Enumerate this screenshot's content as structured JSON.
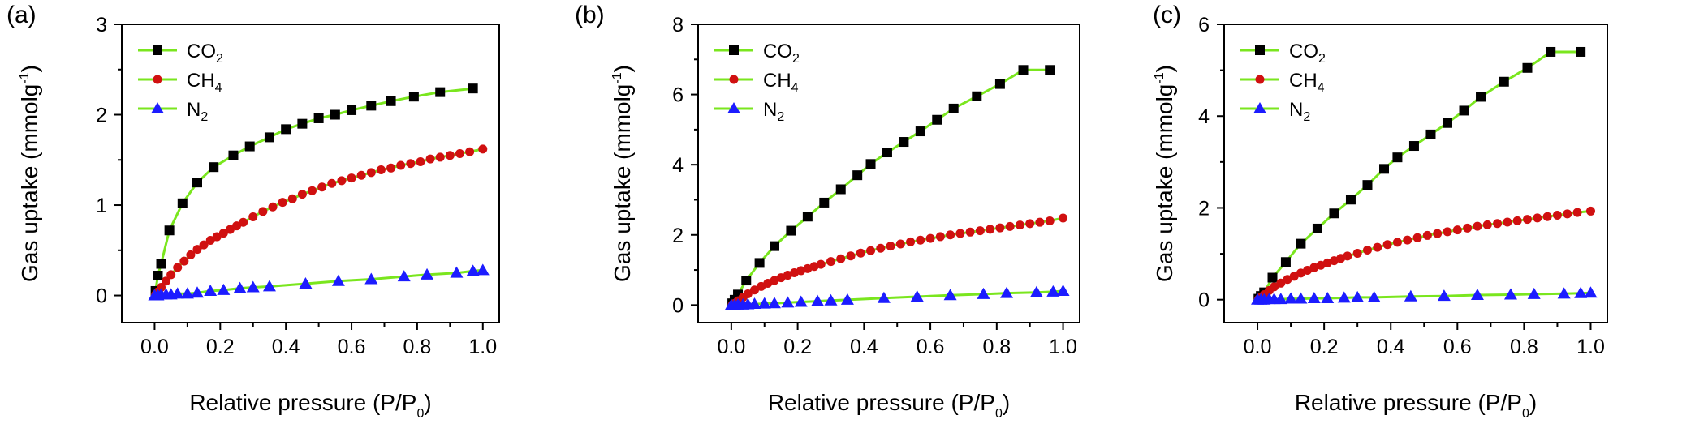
{
  "colors": {
    "co2": "#000000",
    "ch4": "#d01010",
    "n2": "#1c1cff",
    "line": "#7ae61e"
  },
  "legend_labels": {
    "co2_main": "CO",
    "co2_sub": "2",
    "ch4_main": "CH",
    "ch4_sub": "4",
    "n2_main": "N",
    "n2_sub": "2"
  },
  "axis_text": {
    "xlabel_main": "Relative pressure (P/P",
    "xlabel_sub": "0",
    "xlabel_close": ")",
    "ylabel_main": "Gas uptake (mmolg",
    "ylabel_sup": "-1",
    "ylabel_close": ")"
  },
  "chart_data": [
    {
      "type": "line",
      "panel": "(a)",
      "xlim": [
        -0.1,
        1.05
      ],
      "ylim": [
        -0.3,
        3
      ],
      "xticks": [
        "0.0",
        "0.2",
        "0.4",
        "0.6",
        "0.8",
        "1.0"
      ],
      "yticks": [
        "0",
        "1",
        "2",
        "3"
      ],
      "legend": "top-left",
      "series": [
        {
          "name": "CO2",
          "marker": "square",
          "x": [
            0.003,
            0.01,
            0.02,
            0.045,
            0.085,
            0.13,
            0.18,
            0.24,
            0.29,
            0.35,
            0.4,
            0.45,
            0.5,
            0.55,
            0.6,
            0.66,
            0.72,
            0.79,
            0.87,
            0.97
          ],
          "y": [
            0.05,
            0.22,
            0.35,
            0.72,
            1.02,
            1.25,
            1.42,
            1.55,
            1.65,
            1.75,
            1.84,
            1.9,
            1.96,
            2.0,
            2.05,
            2.1,
            2.15,
            2.2,
            2.25,
            2.29
          ]
        },
        {
          "name": "CH4",
          "marker": "circle",
          "x": [
            0.003,
            0.01,
            0.02,
            0.035,
            0.05,
            0.07,
            0.09,
            0.11,
            0.13,
            0.15,
            0.17,
            0.19,
            0.21,
            0.23,
            0.25,
            0.27,
            0.3,
            0.33,
            0.36,
            0.39,
            0.42,
            0.45,
            0.48,
            0.51,
            0.54,
            0.57,
            0.6,
            0.63,
            0.66,
            0.69,
            0.72,
            0.75,
            0.78,
            0.81,
            0.84,
            0.87,
            0.9,
            0.93,
            0.96,
            1.0
          ],
          "y": [
            0.01,
            0.04,
            0.09,
            0.16,
            0.23,
            0.31,
            0.38,
            0.45,
            0.51,
            0.56,
            0.61,
            0.65,
            0.69,
            0.73,
            0.77,
            0.81,
            0.87,
            0.93,
            0.98,
            1.03,
            1.07,
            1.12,
            1.16,
            1.2,
            1.24,
            1.27,
            1.3,
            1.33,
            1.36,
            1.39,
            1.41,
            1.44,
            1.46,
            1.48,
            1.51,
            1.53,
            1.55,
            1.57,
            1.59,
            1.62
          ]
        },
        {
          "name": "N2",
          "marker": "triangle",
          "x": [
            0.0,
            0.01,
            0.02,
            0.035,
            0.05,
            0.07,
            0.1,
            0.13,
            0.17,
            0.21,
            0.26,
            0.3,
            0.35,
            0.46,
            0.56,
            0.66,
            0.76,
            0.83,
            0.92,
            0.97,
            1.0
          ],
          "y": [
            0.0,
            0.0,
            0.01,
            0.01,
            0.01,
            0.02,
            0.02,
            0.03,
            0.05,
            0.06,
            0.08,
            0.09,
            0.1,
            0.13,
            0.16,
            0.18,
            0.21,
            0.23,
            0.25,
            0.27,
            0.28
          ]
        }
      ]
    },
    {
      "type": "line",
      "panel": "(b)",
      "xlim": [
        -0.1,
        1.05
      ],
      "ylim": [
        -0.5,
        8
      ],
      "xticks": [
        "0.0",
        "0.2",
        "0.4",
        "0.6",
        "0.8",
        "1.0"
      ],
      "yticks": [
        "0",
        "2",
        "4",
        "6",
        "8"
      ],
      "legend": "top-left",
      "series": [
        {
          "name": "CO2",
          "marker": "square",
          "x": [
            0.003,
            0.01,
            0.02,
            0.045,
            0.085,
            0.13,
            0.18,
            0.23,
            0.28,
            0.33,
            0.38,
            0.42,
            0.47,
            0.52,
            0.57,
            0.62,
            0.67,
            0.74,
            0.81,
            0.88,
            0.96
          ],
          "y": [
            0.05,
            0.15,
            0.3,
            0.7,
            1.2,
            1.68,
            2.12,
            2.52,
            2.92,
            3.3,
            3.7,
            4.02,
            4.35,
            4.65,
            4.95,
            5.28,
            5.6,
            5.95,
            6.3,
            6.7,
            6.7
          ]
        },
        {
          "name": "CH4",
          "marker": "circle",
          "x": [
            0.003,
            0.01,
            0.02,
            0.035,
            0.05,
            0.07,
            0.09,
            0.11,
            0.13,
            0.15,
            0.17,
            0.19,
            0.21,
            0.23,
            0.25,
            0.27,
            0.3,
            0.33,
            0.36,
            0.39,
            0.42,
            0.45,
            0.48,
            0.51,
            0.54,
            0.57,
            0.6,
            0.63,
            0.66,
            0.69,
            0.72,
            0.75,
            0.78,
            0.81,
            0.84,
            0.87,
            0.9,
            0.93,
            0.96,
            1.0
          ],
          "y": [
            0.01,
            0.05,
            0.12,
            0.22,
            0.32,
            0.43,
            0.53,
            0.62,
            0.7,
            0.78,
            0.85,
            0.92,
            0.98,
            1.04,
            1.1,
            1.16,
            1.24,
            1.32,
            1.4,
            1.48,
            1.55,
            1.62,
            1.68,
            1.74,
            1.8,
            1.85,
            1.9,
            1.95,
            2.0,
            2.04,
            2.08,
            2.12,
            2.16,
            2.2,
            2.24,
            2.28,
            2.32,
            2.36,
            2.4,
            2.48
          ]
        },
        {
          "name": "N2",
          "marker": "triangle",
          "x": [
            0.0,
            0.01,
            0.02,
            0.035,
            0.05,
            0.07,
            0.1,
            0.13,
            0.17,
            0.21,
            0.26,
            0.3,
            0.35,
            0.46,
            0.56,
            0.66,
            0.76,
            0.83,
            0.92,
            0.97,
            1.0
          ],
          "y": [
            0.0,
            0.0,
            0.01,
            0.01,
            0.02,
            0.03,
            0.04,
            0.05,
            0.07,
            0.09,
            0.11,
            0.13,
            0.15,
            0.2,
            0.24,
            0.28,
            0.31,
            0.34,
            0.36,
            0.38,
            0.4
          ]
        }
      ]
    },
    {
      "type": "line",
      "panel": "(c)",
      "xlim": [
        -0.1,
        1.05
      ],
      "ylim": [
        -0.5,
        6
      ],
      "xticks": [
        "0.0",
        "0.2",
        "0.4",
        "0.6",
        "0.8",
        "1.0"
      ],
      "yticks": [
        "0",
        "2",
        "4",
        "6"
      ],
      "legend": "top-left",
      "series": [
        {
          "name": "CO2",
          "marker": "square",
          "x": [
            0.003,
            0.01,
            0.02,
            0.045,
            0.085,
            0.13,
            0.18,
            0.23,
            0.28,
            0.33,
            0.38,
            0.42,
            0.47,
            0.52,
            0.57,
            0.62,
            0.67,
            0.74,
            0.81,
            0.88,
            0.97
          ],
          "y": [
            0.02,
            0.08,
            0.16,
            0.48,
            0.82,
            1.22,
            1.55,
            1.88,
            2.18,
            2.5,
            2.85,
            3.1,
            3.35,
            3.6,
            3.85,
            4.12,
            4.42,
            4.75,
            5.05,
            5.4,
            5.4
          ]
        },
        {
          "name": "CH4",
          "marker": "circle",
          "x": [
            0.003,
            0.01,
            0.02,
            0.035,
            0.05,
            0.07,
            0.09,
            0.11,
            0.13,
            0.15,
            0.17,
            0.19,
            0.21,
            0.23,
            0.25,
            0.27,
            0.3,
            0.33,
            0.36,
            0.39,
            0.42,
            0.45,
            0.48,
            0.51,
            0.54,
            0.57,
            0.6,
            0.63,
            0.66,
            0.69,
            0.72,
            0.75,
            0.78,
            0.81,
            0.84,
            0.87,
            0.9,
            0.93,
            0.96,
            1.0
          ],
          "y": [
            0.01,
            0.05,
            0.11,
            0.2,
            0.28,
            0.36,
            0.44,
            0.51,
            0.58,
            0.64,
            0.7,
            0.75,
            0.8,
            0.85,
            0.9,
            0.95,
            1.01,
            1.08,
            1.14,
            1.2,
            1.25,
            1.3,
            1.35,
            1.4,
            1.44,
            1.48,
            1.52,
            1.56,
            1.6,
            1.63,
            1.66,
            1.69,
            1.72,
            1.75,
            1.78,
            1.81,
            1.84,
            1.87,
            1.9,
            1.93
          ]
        },
        {
          "name": "N2",
          "marker": "triangle",
          "x": [
            0.0,
            0.01,
            0.02,
            0.035,
            0.05,
            0.07,
            0.1,
            0.13,
            0.17,
            0.21,
            0.26,
            0.3,
            0.35,
            0.46,
            0.56,
            0.66,
            0.76,
            0.83,
            0.92,
            0.97,
            1.0
          ],
          "y": [
            0.0,
            0.0,
            0.0,
            0.01,
            0.01,
            0.01,
            0.02,
            0.02,
            0.03,
            0.03,
            0.04,
            0.05,
            0.05,
            0.07,
            0.08,
            0.1,
            0.11,
            0.12,
            0.13,
            0.14,
            0.15
          ]
        }
      ]
    }
  ]
}
